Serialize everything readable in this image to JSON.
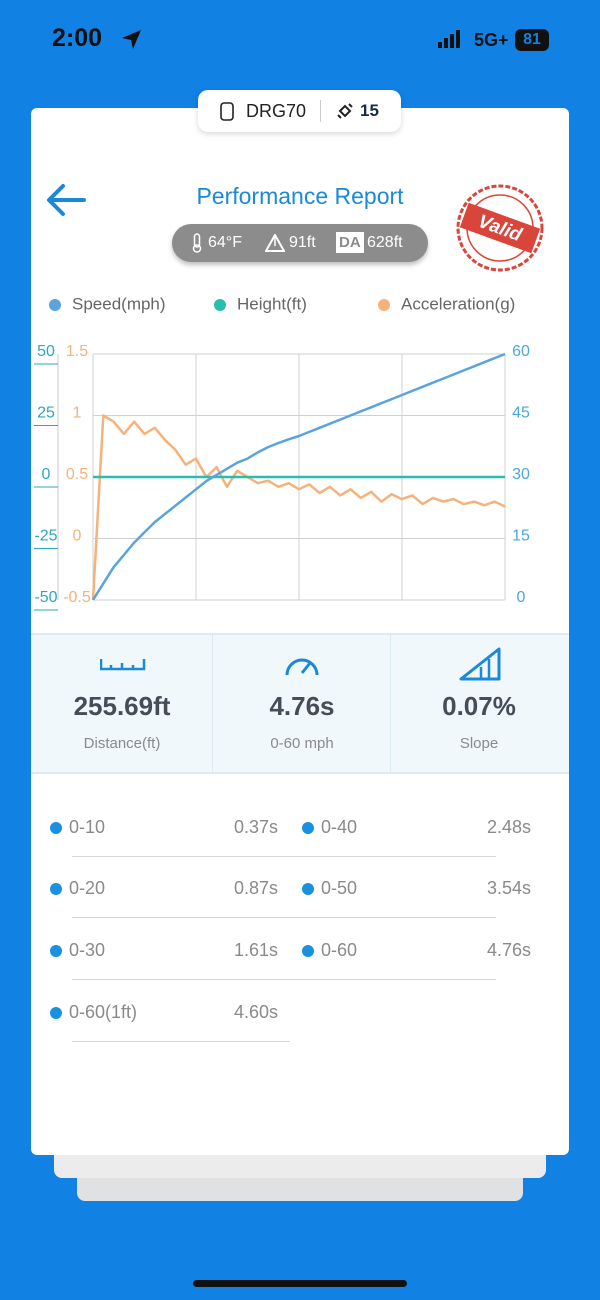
{
  "status_bar": {
    "time": "2:00",
    "network": "5G+",
    "battery": "81"
  },
  "device": {
    "name": "DRG70",
    "count": 15
  },
  "header": {
    "title": "Performance Report",
    "temperature": "64°F",
    "altitude": "91ft",
    "da_label": "DA",
    "da_value": "628ft",
    "stamp": "Valid"
  },
  "chart_data": {
    "type": "line",
    "legend": "top",
    "grid": true,
    "categories": [
      null,
      null,
      null,
      null,
      null,
      null,
      null,
      null,
      null,
      null,
      null,
      null,
      null,
      null,
      null,
      null,
      null,
      null,
      null,
      null,
      null,
      null,
      null,
      null,
      null,
      null,
      null,
      null,
      null,
      null,
      null,
      null,
      null,
      null,
      null,
      null,
      null,
      null,
      null,
      null,
      null
    ],
    "series": [
      {
        "name": "Speed(mph)",
        "color": "#5ba3dc",
        "axis": "y2",
        "values": [
          0,
          4,
          8,
          11,
          14,
          16.5,
          19,
          21,
          23,
          25,
          27,
          29,
          30.5,
          32,
          33.5,
          34.5,
          36,
          37.3,
          38.3,
          39.2,
          40,
          41,
          42,
          43,
          44,
          45,
          46,
          47,
          48,
          49,
          50,
          51,
          52,
          53,
          54,
          55,
          56,
          57,
          58,
          59,
          60
        ]
      },
      {
        "name": "Height(ft)",
        "color": "#2bbcb0",
        "axis": "y",
        "values": [
          0,
          0,
          0,
          0,
          0,
          0,
          0,
          0,
          0,
          0,
          0,
          0,
          0,
          0,
          0,
          0,
          0,
          0,
          0,
          0,
          0,
          0,
          0,
          0,
          0,
          0,
          0,
          0,
          0,
          0,
          0,
          0,
          0,
          0,
          0,
          0,
          0,
          0,
          0,
          0,
          0
        ]
      },
      {
        "name": "Acceleration(g)",
        "color": "#f5b27a",
        "axis": "y3",
        "values": [
          -0.5,
          1.0,
          0.95,
          0.85,
          0.95,
          0.85,
          0.9,
          0.8,
          0.72,
          0.6,
          0.65,
          0.5,
          0.58,
          0.42,
          0.55,
          0.5,
          0.45,
          0.47,
          0.42,
          0.45,
          0.4,
          0.44,
          0.37,
          0.42,
          0.35,
          0.4,
          0.33,
          0.38,
          0.3,
          0.36,
          0.32,
          0.35,
          0.28,
          0.33,
          0.3,
          0.32,
          0.28,
          0.3,
          0.27,
          0.3,
          0.26
        ]
      }
    ],
    "ylim": [
      -50,
      50
    ],
    "yticks": [
      -50,
      -25,
      0,
      25,
      50
    ],
    "y2lim": [
      0,
      60
    ],
    "y2ticks": [
      0,
      15,
      30,
      45,
      60
    ],
    "y3lim": [
      -0.5,
      1.5
    ],
    "y3ticks": [
      -0.5,
      0,
      0.5,
      1,
      1.5
    ]
  },
  "stats": [
    {
      "value": "255.69ft",
      "label": "Distance(ft)"
    },
    {
      "value": "4.76s",
      "label": "0-60 mph"
    },
    {
      "value": "0.07%",
      "label": "Slope"
    }
  ],
  "splits": {
    "left": [
      {
        "label": "0-10",
        "time": "0.37s"
      },
      {
        "label": "0-20",
        "time": "0.87s"
      },
      {
        "label": "0-30",
        "time": "1.61s"
      },
      {
        "label": "0-60(1ft)",
        "time": "4.60s"
      }
    ],
    "right": [
      {
        "label": "0-40",
        "time": "2.48s"
      },
      {
        "label": "0-50",
        "time": "3.54s"
      },
      {
        "label": "0-60",
        "time": "4.76s"
      }
    ]
  }
}
